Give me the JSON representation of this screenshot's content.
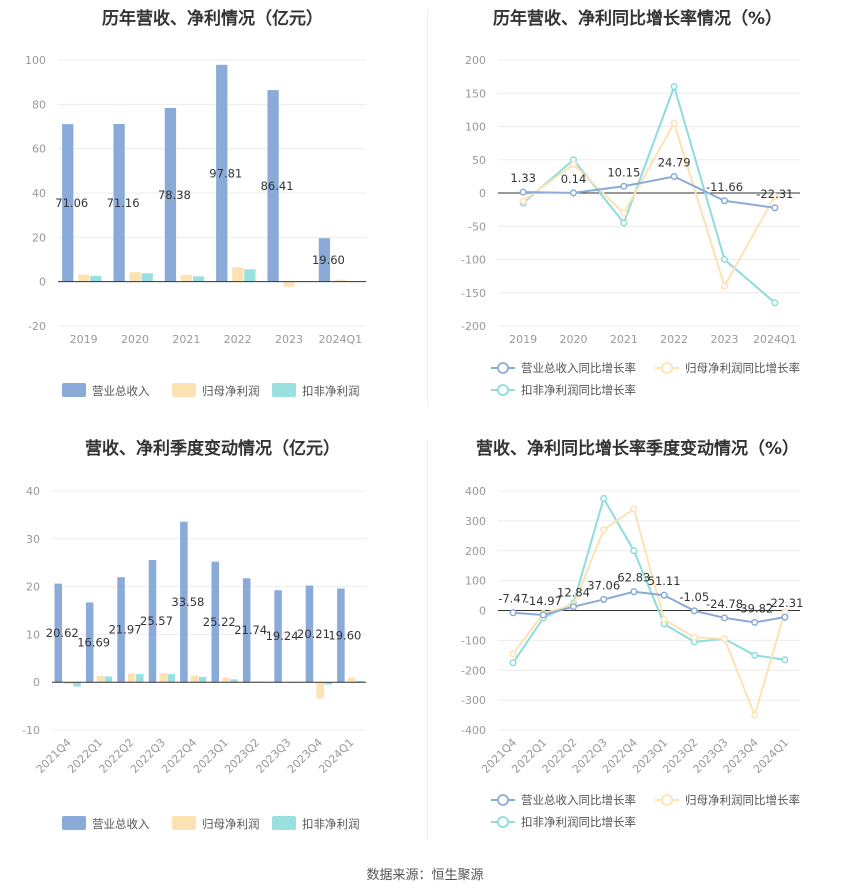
{
  "colors": {
    "revenue": "#8aaad8",
    "net_profit": "#fde2b4",
    "deducted_profit": "#9ae0e0",
    "revenue_line": "#8aaad8",
    "net_line": "#fde2b4",
    "deducted_line": "#8edcdc"
  },
  "source_text": "数据来源：恒生聚源",
  "chart_data": [
    {
      "type": "bar",
      "title": "历年营收、净利情况（亿元）",
      "categories": [
        "2019",
        "2020",
        "2021",
        "2022",
        "2023",
        "2024Q1"
      ],
      "ylim": [
        -20,
        100
      ],
      "yticks": [
        -20,
        0,
        20,
        40,
        60,
        80,
        100
      ],
      "series": [
        {
          "name": "营业总收入",
          "values": [
            71.06,
            71.16,
            78.38,
            97.81,
            86.41,
            19.6
          ]
        },
        {
          "name": "归母净利润",
          "values": [
            3.2,
            4.3,
            3.0,
            6.5,
            -2.3,
            0.9
          ]
        },
        {
          "name": "扣非净利润",
          "values": [
            2.6,
            3.8,
            2.4,
            5.6,
            0.2,
            0.3
          ]
        }
      ],
      "labels": [
        "71.06",
        "71.16",
        "78.38",
        "97.81",
        "86.41",
        "19.60"
      ],
      "legend_position": "bottom"
    },
    {
      "type": "line",
      "title": "历年营收、净利同比增长率情况（%）",
      "categories": [
        "2019",
        "2020",
        "2021",
        "2022",
        "2023",
        "2024Q1"
      ],
      "ylim": [
        -200,
        200
      ],
      "yticks": [
        -200,
        -150,
        -100,
        -50,
        0,
        50,
        100,
        150,
        200
      ],
      "series": [
        {
          "name": "营业总收入同比增长率",
          "values": [
            1.33,
            0.14,
            10.15,
            24.79,
            -11.66,
            -22.31
          ]
        },
        {
          "name": "归母净利润同比增长率",
          "values": [
            -12,
            43,
            -30,
            105,
            -140,
            -5
          ]
        },
        {
          "name": "扣非净利润同比增长率",
          "values": [
            -15,
            50,
            -45,
            160,
            -100,
            -165
          ]
        }
      ],
      "labels": [
        "1.33",
        "0.14",
        "10.15",
        "24.79",
        "-11.66",
        "-22.31"
      ],
      "legend_position": "bottom"
    },
    {
      "type": "bar",
      "title": "营收、净利季度变动情况（亿元）",
      "categories": [
        "2021Q4",
        "2022Q1",
        "2022Q2",
        "2022Q3",
        "2022Q4",
        "2023Q1",
        "2023Q2",
        "2023Q3",
        "2023Q4",
        "2024Q1"
      ],
      "ylim": [
        -10,
        40
      ],
      "yticks": [
        -10,
        0,
        10,
        20,
        30,
        40
      ],
      "series": [
        {
          "name": "营业总收入",
          "values": [
            20.62,
            16.69,
            21.97,
            25.57,
            33.58,
            25.22,
            21.74,
            19.24,
            20.21,
            19.6
          ]
        },
        {
          "name": "归母净利润",
          "values": [
            -0.4,
            1.3,
            1.8,
            1.9,
            1.4,
            1.0,
            0.2,
            0.1,
            -3.4,
            0.9
          ]
        },
        {
          "name": "扣非净利润",
          "values": [
            -0.9,
            1.2,
            1.7,
            1.7,
            1.1,
            0.6,
            0.1,
            0.1,
            -0.5,
            0.3
          ]
        }
      ],
      "labels": [
        "20.62",
        "16.69",
        "21.97",
        "25.57",
        "33.58",
        "25.22",
        "21.74",
        "19.24",
        "20.21",
        "19.60"
      ],
      "legend_position": "bottom"
    },
    {
      "type": "line",
      "title": "营收、净利同比增长率季度变动情况（%）",
      "categories": [
        "2021Q4",
        "2022Q1",
        "2022Q2",
        "2022Q3",
        "2022Q4",
        "2023Q1",
        "2023Q2",
        "2023Q3",
        "2023Q4",
        "2024Q1"
      ],
      "ylim": [
        -400,
        400
      ],
      "yticks": [
        -400,
        -300,
        -200,
        -100,
        0,
        100,
        200,
        300,
        400
      ],
      "series": [
        {
          "name": "营业总收入同比增长率",
          "values": [
            -7.47,
            -14.97,
            12.84,
            37.06,
            62.83,
            51.11,
            -1.05,
            -24.78,
            -39.82,
            -22.31
          ]
        },
        {
          "name": "归母净利润同比增长率",
          "values": [
            -145,
            -10,
            20,
            270,
            340,
            -30,
            -90,
            -95,
            -350,
            -5
          ]
        },
        {
          "name": "扣非净利润同比增长率",
          "values": [
            -175,
            -25,
            25,
            375,
            200,
            -45,
            -105,
            -95,
            -150,
            -165
          ]
        }
      ],
      "labels": [
        "-7.47",
        "-14.97",
        "12.84",
        "37.06",
        "62.83",
        "51.11",
        "-1.05",
        "-24.78",
        "-39.82",
        "-22.31"
      ],
      "legend_position": "bottom"
    }
  ]
}
